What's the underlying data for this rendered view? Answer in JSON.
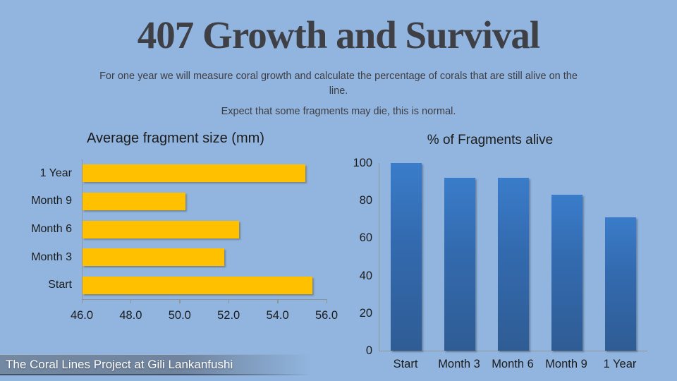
{
  "slide": {
    "title": "407 Growth and Survival",
    "subtitle_line1": "For one year we will measure coral growth and calculate the percentage of corals that are still alive on the line.",
    "subtitle_line2": "Expect that some fragments may die, this is normal.",
    "footer": "The Coral Lines Project at Gili Lankanfushi"
  },
  "colors": {
    "background": "#91B5DF",
    "title_text": "#3F3F46",
    "body_text": "#3E3E44",
    "chart_text": "#1C1C1C",
    "axis_line": "#8C949C",
    "bar_yellow": "#FFC000",
    "bar_blue_top": "#3A7CCA",
    "bar_blue_bottom": "#2F5C94",
    "footer_band": "#72869F",
    "footer_text": "#FFFFFF"
  },
  "chart_data": [
    {
      "type": "bar",
      "orientation": "horizontal",
      "title": "Average fragment size (mm)",
      "categories": [
        "1 Year",
        "Month 9",
        "Month 6",
        "Month 3",
        "Start"
      ],
      "values": [
        55.1,
        50.2,
        52.4,
        51.8,
        55.4
      ],
      "xlabel": "",
      "ylabel": "",
      "xlim": [
        46.0,
        56.0
      ],
      "x_ticks": [
        "46.0",
        "48.0",
        "50.0",
        "52.0",
        "54.0",
        "56.0"
      ],
      "grid": false,
      "legend": false,
      "bar_color": "#FFC000"
    },
    {
      "type": "bar",
      "orientation": "vertical",
      "title": "% of Fragments alive",
      "categories": [
        "Start",
        "Month 3",
        "Month 6",
        "Month 9",
        "1 Year"
      ],
      "values": [
        100,
        92,
        92,
        83,
        71
      ],
      "xlabel": "",
      "ylabel": "",
      "ylim": [
        0,
        100
      ],
      "y_ticks": [
        "0",
        "20",
        "40",
        "60",
        "80",
        "100"
      ],
      "grid": false,
      "legend": false,
      "bar_color": "#3A7CCA"
    }
  ]
}
